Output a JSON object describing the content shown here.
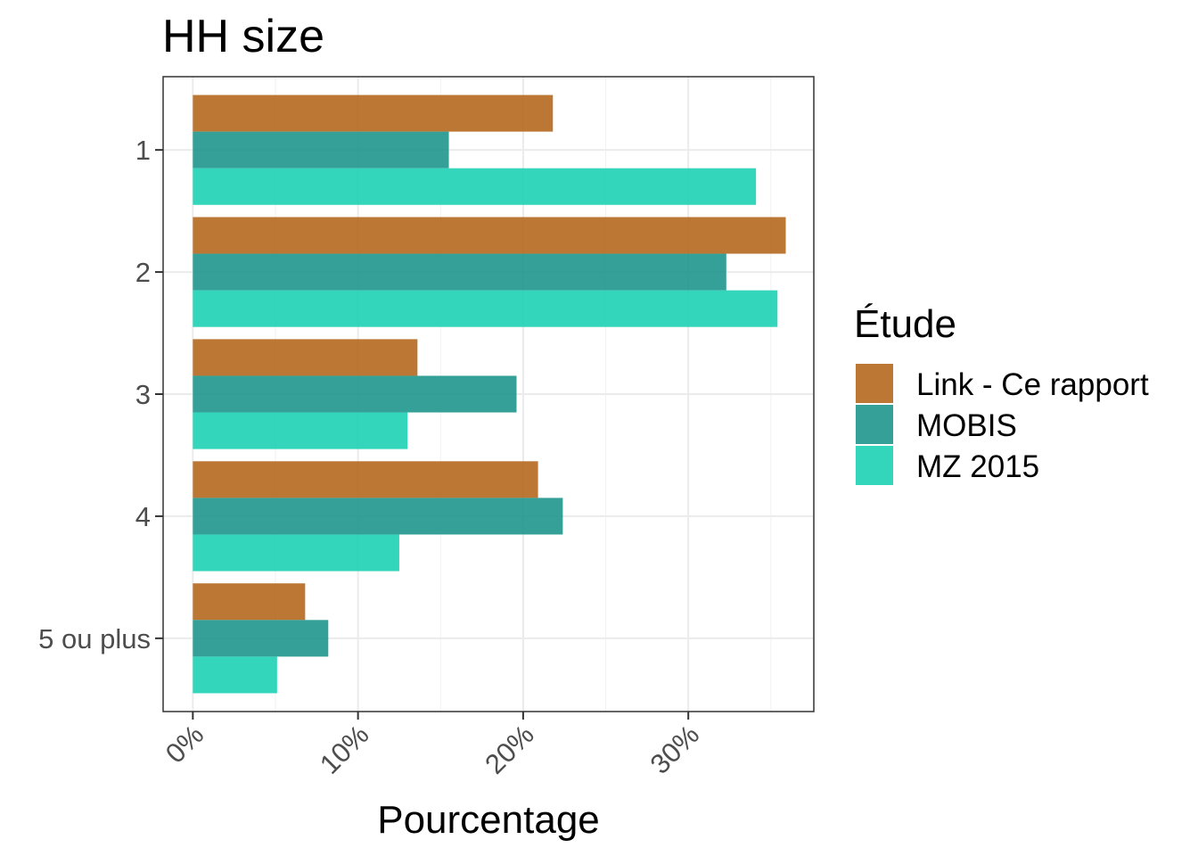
{
  "chart_data": {
    "type": "bar",
    "orientation": "horizontal",
    "title": "HH size",
    "xlabel": "Pourcentage",
    "ylabel": "",
    "categories": [
      "1",
      "2",
      "3",
      "4",
      "5 ou plus"
    ],
    "series": [
      {
        "name": "Link - Ce rapport",
        "color": "#b5681e",
        "values": [
          21.8,
          35.9,
          13.6,
          20.9,
          6.8
        ]
      },
      {
        "name": "MOBIS",
        "color": "#1f968c",
        "values": [
          15.5,
          32.3,
          19.6,
          22.4,
          8.2
        ]
      },
      {
        "name": "MZ 2015",
        "color": "#1dd0b4",
        "values": [
          34.1,
          35.4,
          13.0,
          12.5,
          5.1
        ]
      }
    ],
    "xlim": [
      -1.8,
      37.6
    ],
    "xticks": [
      0,
      10,
      20,
      30
    ],
    "xtick_labels": [
      "0%",
      "10%",
      "20%",
      "30%"
    ],
    "grid": true,
    "legend": {
      "title": "Étude",
      "position": "right"
    }
  }
}
